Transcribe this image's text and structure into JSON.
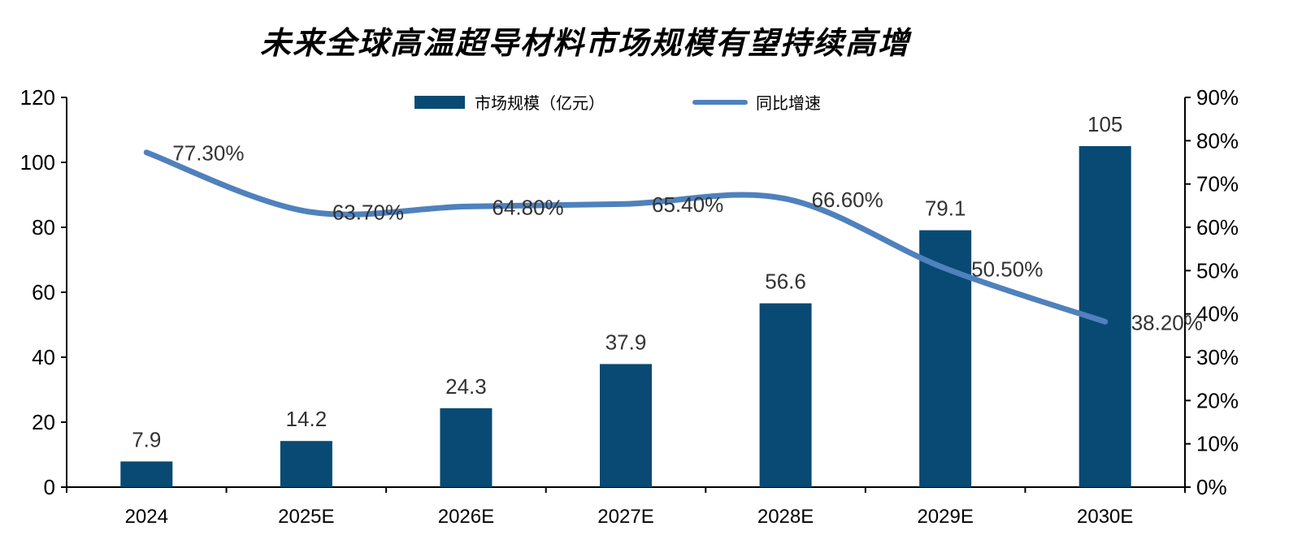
{
  "title": "未来全球高温超导材料市场规模有望持续高增",
  "legend": {
    "bar_label": "市场规模（亿元）",
    "line_label": "同比增速"
  },
  "colors": {
    "bar": "#084a73",
    "line": "#4f81bd",
    "axis": "#000000"
  },
  "chart_data": {
    "type": "bar",
    "title": "未来全球高温超导材料市场规模有望持续高增",
    "categories": [
      "2024",
      "2025E",
      "2026E",
      "2027E",
      "2028E",
      "2029E",
      "2030E"
    ],
    "series": [
      {
        "name": "市场规模（亿元）",
        "type": "bar",
        "axis": "left",
        "values": [
          7.9,
          14.2,
          24.3,
          37.9,
          56.6,
          79.1,
          105
        ],
        "labels": [
          "7.9",
          "14.2",
          "24.3",
          "37.9",
          "56.6",
          "79.1",
          "105"
        ]
      },
      {
        "name": "同比增速",
        "type": "line",
        "axis": "right",
        "values": [
          77.3,
          63.7,
          64.8,
          65.4,
          66.6,
          50.5,
          38.2
        ],
        "labels": [
          "77.30%",
          "63.70%",
          "64.80%",
          "65.40%",
          "66.60%",
          "50.50%",
          "38.20%"
        ]
      }
    ],
    "y_left": {
      "range": [
        0,
        120
      ],
      "ticks": [
        "0",
        "20",
        "40",
        "60",
        "80",
        "100",
        "120"
      ]
    },
    "y_right": {
      "range": [
        0,
        90
      ],
      "ticks": [
        "0%",
        "10%",
        "20%",
        "30%",
        "40%",
        "50%",
        "60%",
        "70%",
        "80%",
        "90%"
      ]
    },
    "grid": false,
    "legend_position": "top-center"
  }
}
